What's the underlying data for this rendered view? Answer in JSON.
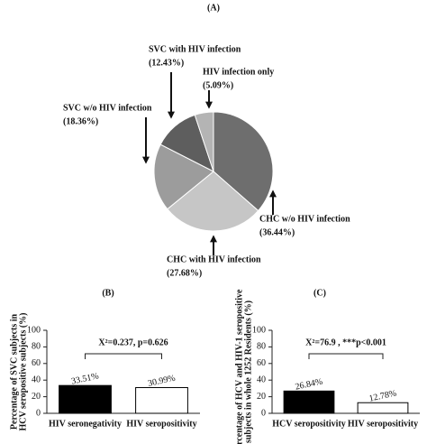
{
  "chart_data": [
    {
      "type": "pie",
      "title": "(A)",
      "categories": [
        "CHC w/o HIV infection",
        "CHC with HIV infection",
        "SVC w/o HIV infection",
        "SVC with HIV infection",
        "HIV infection only"
      ],
      "values": [
        36.44,
        27.68,
        18.36,
        12.43,
        5.09
      ],
      "value_labels": [
        "(36.44%)",
        "(27.68%)",
        "(18.36%)",
        "(12.43%)",
        "(5.09%)"
      ],
      "colors": [
        "#6e6e6e",
        "#c6c6c6",
        "#9c9c9c",
        "#5e5e5e",
        "#b4b4b4"
      ]
    },
    {
      "type": "bar",
      "title": "(B)",
      "ylabel": [
        "Percentage of SVC subjects in",
        "HCV seropositive subjects (%)"
      ],
      "annotation": "X²=0.237, p=0.626",
      "categories": [
        "HIV seronegativity",
        "HIV seropositivity"
      ],
      "values": [
        33.51,
        30.99
      ],
      "value_labels": [
        "33.51%",
        "30.99%"
      ],
      "colors": [
        "#000000",
        "#ffffff"
      ],
      "ylim": [
        0,
        100
      ],
      "yticks": [
        0,
        20,
        40,
        60,
        80,
        100
      ]
    },
    {
      "type": "bar",
      "title": "(C)",
      "ylabel": [
        "Percentage of HCV and HIV-1 seropositive",
        "subjects in whole 1252 Residents (%)"
      ],
      "annotation": "X²=76.9 , ***p<0.001",
      "categories": [
        "HCV seropositivity",
        "HIV seropositivity"
      ],
      "values": [
        26.84,
        12.78
      ],
      "value_labels": [
        "26.84%",
        "12.78%"
      ],
      "colors": [
        "#000000",
        "#ffffff"
      ],
      "ylim": [
        0,
        100
      ],
      "yticks": [
        0,
        20,
        40,
        60,
        80,
        100
      ]
    }
  ]
}
